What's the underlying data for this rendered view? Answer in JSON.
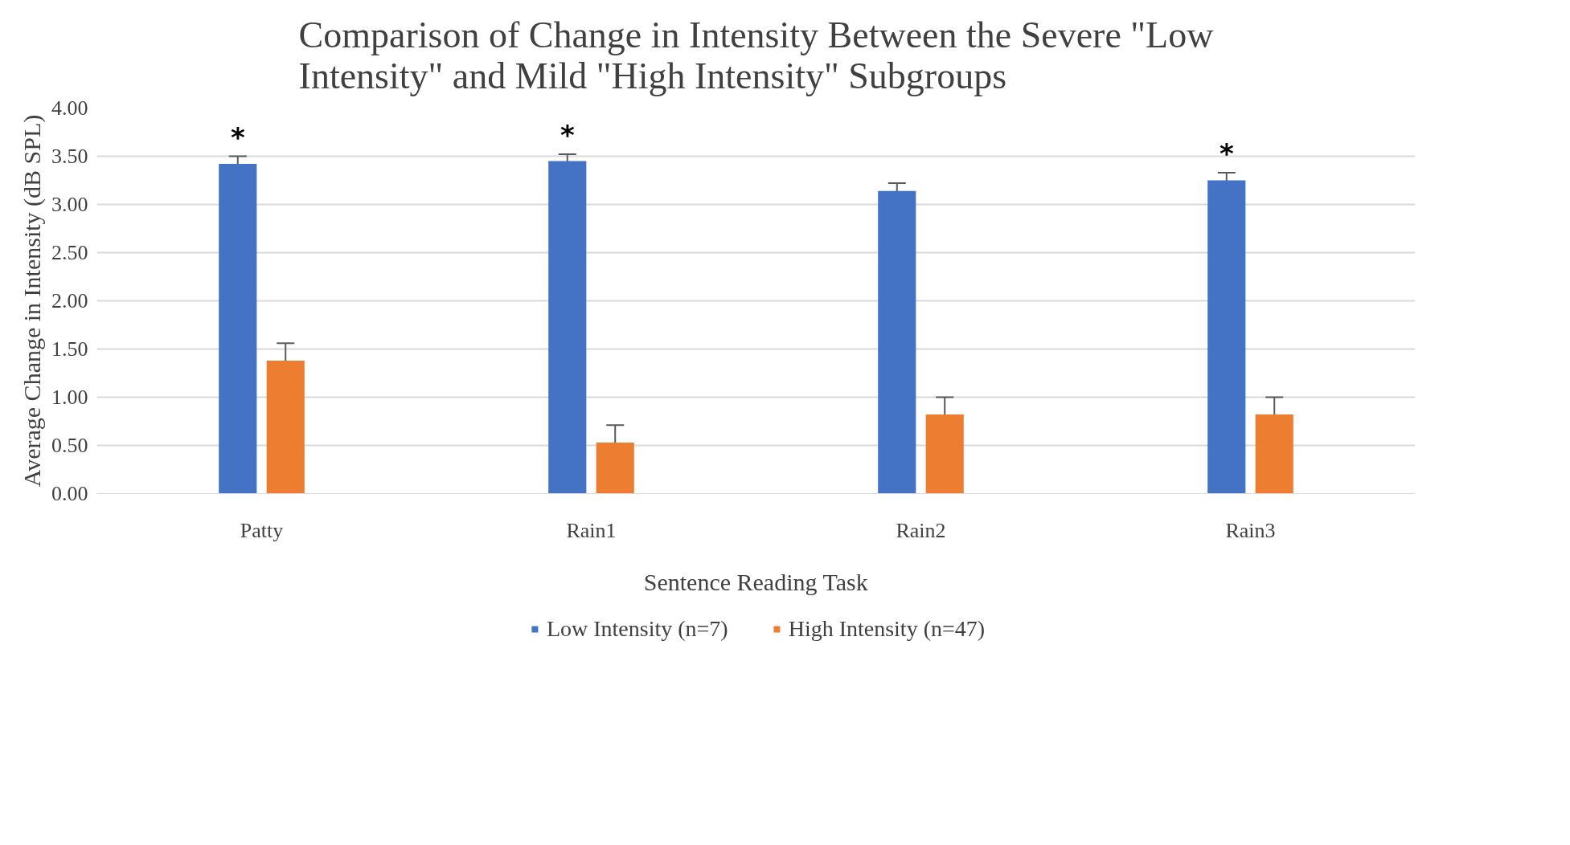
{
  "chart_data": {
    "type": "bar",
    "title": "Comparison of Change in Intensity Between the Severe \"Low Intensity\" and Mild \"High Intensity\" Subgroups",
    "xlabel": "Sentence Reading Task",
    "ylabel": "Average Change in Intensity (dB SPL)",
    "categories": [
      "Patty",
      "Rain1",
      "Rain2",
      "Rain3"
    ],
    "series": [
      {
        "name": "Low Intensity (n=7)",
        "color": "#4472c4",
        "values": [
          3.42,
          3.45,
          3.14,
          3.25
        ],
        "errors": [
          0.08,
          0.07,
          0.08,
          0.08
        ],
        "value_labels": [
          "*",
          "*",
          null,
          "*"
        ]
      },
      {
        "name": "High Intensity (n=47)",
        "color": "#ed7d31",
        "values": [
          1.38,
          0.53,
          0.82,
          0.82
        ],
        "errors": [
          0.18,
          0.18,
          0.18,
          0.18
        ]
      }
    ],
    "ylim": [
      0,
      4
    ],
    "yticks": [
      {
        "value": 0,
        "label": "0.00"
      },
      {
        "value": 0.5,
        "label": "0.50"
      },
      {
        "value": 1,
        "label": "1.00"
      },
      {
        "value": 1.5,
        "label": "1.50"
      },
      {
        "value": 2,
        "label": "2.00"
      },
      {
        "value": 2.5,
        "label": "2.50"
      },
      {
        "value": 3,
        "label": "3.00"
      },
      {
        "value": 3.5,
        "label": "3.50"
      },
      {
        "value": 4,
        "label": "4.00"
      }
    ],
    "grid": "y",
    "legend": "bottom"
  }
}
